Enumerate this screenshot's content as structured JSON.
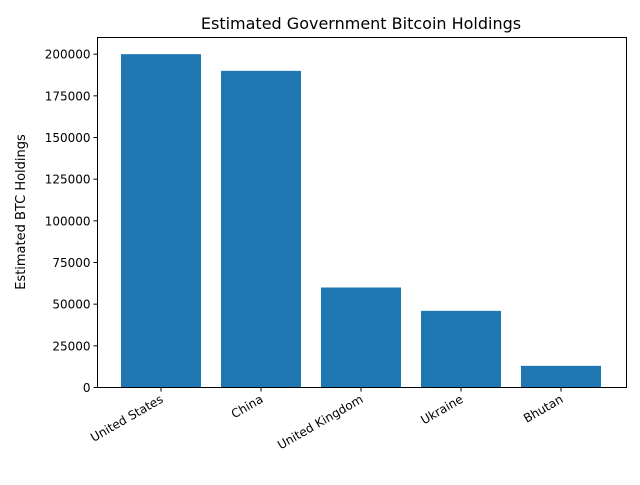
{
  "chart_data": {
    "type": "bar",
    "title": "Estimated Government Bitcoin Holdings",
    "xlabel": "",
    "ylabel": "Estimated BTC Holdings",
    "categories": [
      "United States",
      "China",
      "United Kingdom",
      "Ukraine",
      "Bhutan"
    ],
    "values": [
      200000,
      190000,
      60000,
      46000,
      13000
    ],
    "ylim": [
      0,
      210000
    ],
    "yticks": [
      "0",
      "25000",
      "50000",
      "75000",
      "100000",
      "125000",
      "150000",
      "175000",
      "200000"
    ],
    "grid": false,
    "bar_color": "#1f77b4"
  }
}
